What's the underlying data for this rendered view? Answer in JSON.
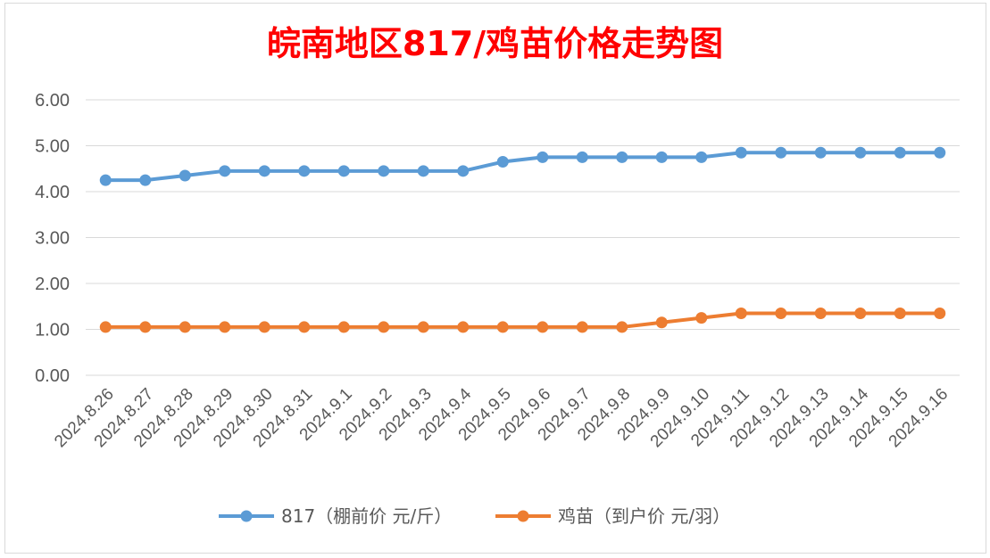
{
  "chart_data": {
    "type": "line",
    "title": "皖南地区817/鸡苗价格走势图",
    "x": [
      "2024.8.26",
      "2024.8.27",
      "2024.8.28",
      "2024.8.29",
      "2024.8.30",
      "2024.8.31",
      "2024.9.1",
      "2024.9.2",
      "2024.9.3",
      "2024.9.4",
      "2024.9.5",
      "2024.9.6",
      "2024.9.7",
      "2024.9.8",
      "2024.9.9",
      "2024.9.10",
      "2024.9.11",
      "2024.9.12",
      "2024.9.13",
      "2024.9.14",
      "2024.9.15",
      "2024.9.16"
    ],
    "yticks": [
      "0.00",
      "1.00",
      "2.00",
      "3.00",
      "4.00",
      "5.00",
      "6.00"
    ],
    "ylim": [
      0,
      6
    ],
    "grid": true,
    "legend_position": "bottom",
    "series": [
      {
        "name": "817（棚前价 元/斤）",
        "color": "#5b9bd5",
        "values": [
          4.25,
          4.25,
          4.35,
          4.45,
          4.45,
          4.45,
          4.45,
          4.45,
          4.45,
          4.45,
          4.65,
          4.75,
          4.75,
          4.75,
          4.75,
          4.75,
          4.85,
          4.85,
          4.85,
          4.85,
          4.85,
          4.85
        ]
      },
      {
        "name": "鸡苗（到户价 元/羽）",
        "color": "#ed7d31",
        "values": [
          1.05,
          1.05,
          1.05,
          1.05,
          1.05,
          1.05,
          1.05,
          1.05,
          1.05,
          1.05,
          1.05,
          1.05,
          1.05,
          1.05,
          1.15,
          1.25,
          1.35,
          1.35,
          1.35,
          1.35,
          1.35,
          1.35
        ]
      }
    ]
  }
}
